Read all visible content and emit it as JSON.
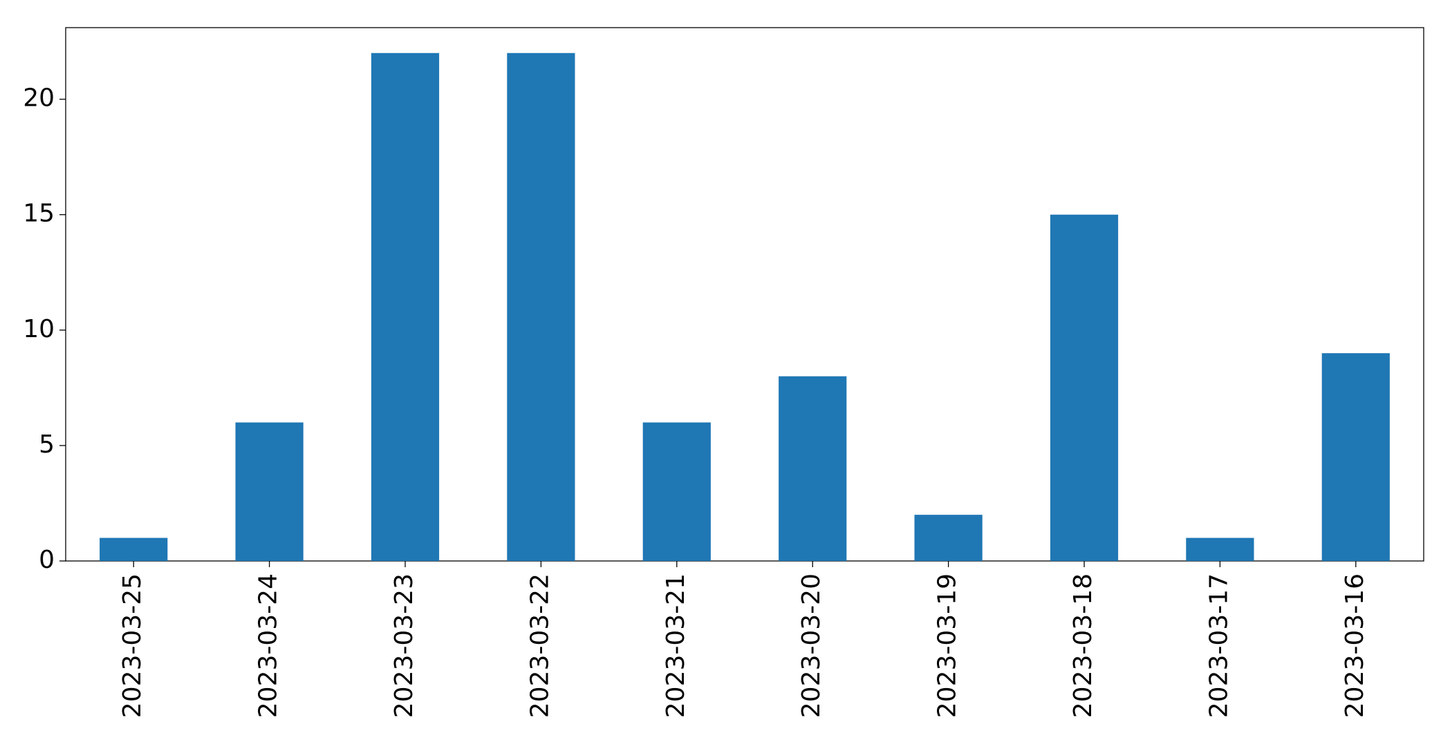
{
  "chart_data": {
    "type": "bar",
    "categories": [
      "2023-03-25",
      "2023-03-24",
      "2023-03-23",
      "2023-03-22",
      "2023-03-21",
      "2023-03-20",
      "2023-03-19",
      "2023-03-18",
      "2023-03-17",
      "2023-03-16"
    ],
    "values": [
      1,
      6,
      22,
      22,
      6,
      8,
      2,
      15,
      1,
      9
    ],
    "color": "#1f77b4",
    "ylim": [
      0,
      23.1
    ],
    "yticks": [
      0,
      5,
      10,
      15,
      20
    ],
    "grid": false
  }
}
